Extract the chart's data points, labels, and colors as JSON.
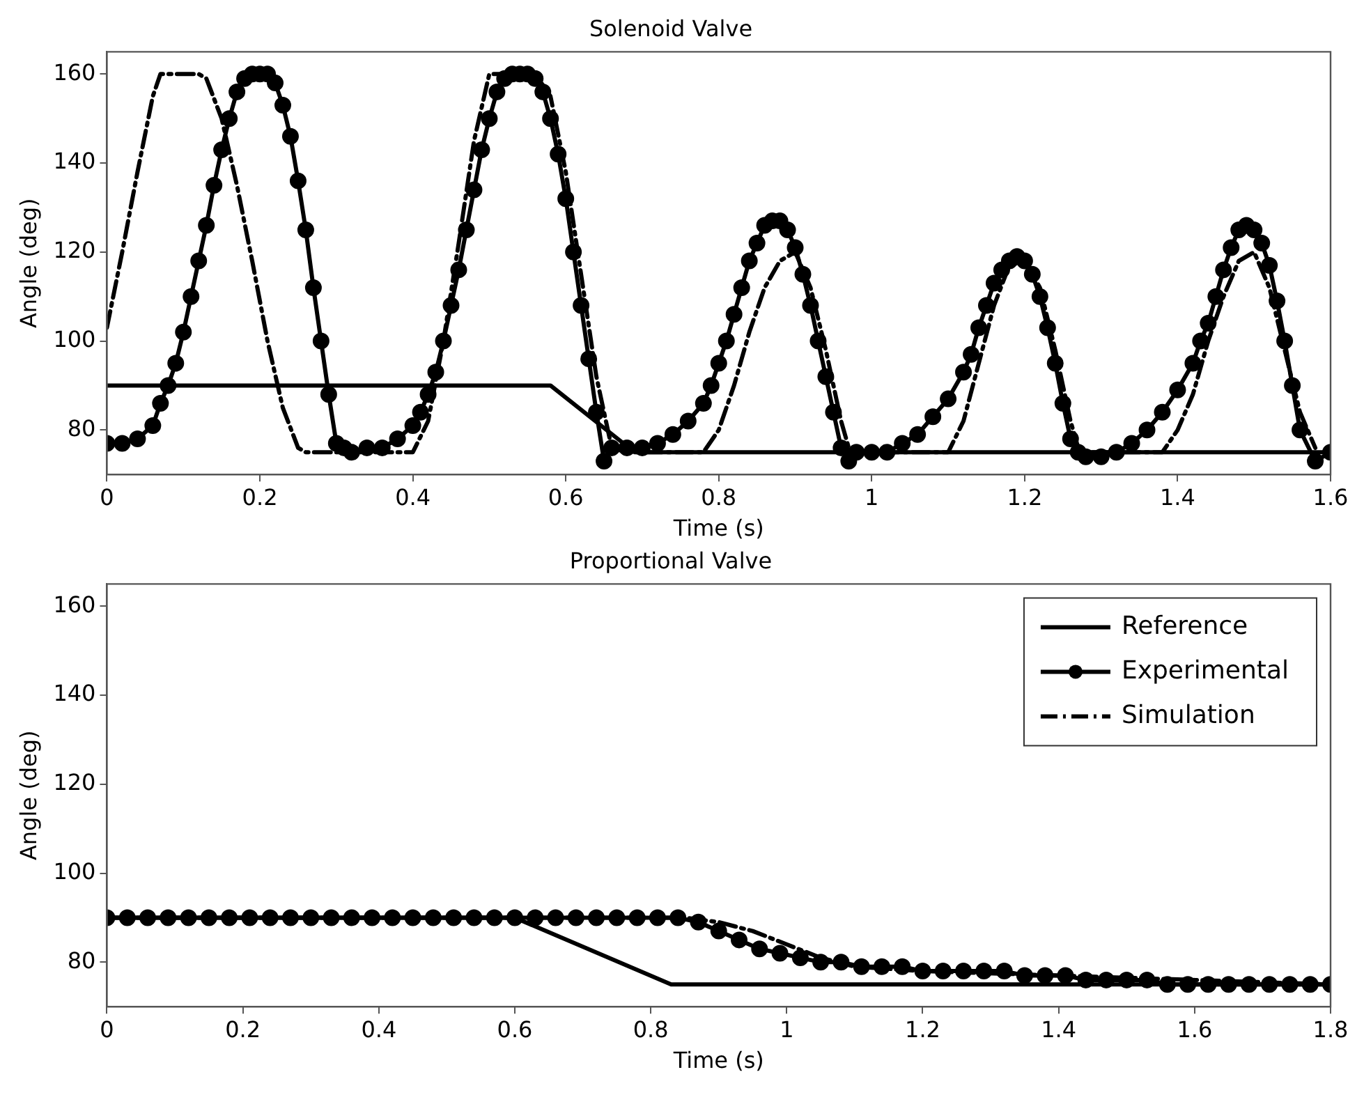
{
  "chart_data": [
    {
      "type": "line",
      "title": "Solenoid Valve",
      "xlabel": "Time (s)",
      "ylabel": "Angle (deg)",
      "xlim": [
        0,
        1.6
      ],
      "xticks": [
        0,
        0.2,
        0.4,
        0.6,
        0.8,
        1,
        1.2,
        1.4,
        1.6
      ],
      "ylim": [
        70,
        165
      ],
      "yticks": [
        80,
        100,
        120,
        140,
        160
      ],
      "grid": false,
      "legend": false,
      "series": [
        {
          "color": "#000000",
          "line_style": "solid",
          "x": [
            0,
            0.58,
            0.69,
            1.6
          ],
          "values": [
            90,
            90,
            75,
            75
          ]
        },
        {
          "color": "#000000",
          "line_style": "solid",
          "marker": "circle",
          "x": [
            0,
            0.02,
            0.04,
            0.06,
            0.07,
            0.08,
            0.09,
            0.1,
            0.11,
            0.12,
            0.13,
            0.14,
            0.15,
            0.16,
            0.17,
            0.18,
            0.19,
            0.2,
            0.21,
            0.22,
            0.23,
            0.24,
            0.25,
            0.26,
            0.27,
            0.28,
            0.29,
            0.3,
            0.31,
            0.32,
            0.34,
            0.36,
            0.38,
            0.4,
            0.41,
            0.42,
            0.43,
            0.44,
            0.45,
            0.46,
            0.47,
            0.48,
            0.49,
            0.5,
            0.51,
            0.52,
            0.53,
            0.54,
            0.55,
            0.56,
            0.57,
            0.58,
            0.59,
            0.6,
            0.61,
            0.62,
            0.63,
            0.64,
            0.65,
            0.66,
            0.68,
            0.7,
            0.72,
            0.74,
            0.76,
            0.78,
            0.79,
            0.8,
            0.81,
            0.82,
            0.83,
            0.84,
            0.85,
            0.86,
            0.87,
            0.88,
            0.89,
            0.9,
            0.91,
            0.92,
            0.93,
            0.94,
            0.95,
            0.96,
            0.97,
            0.98,
            1,
            1.02,
            1.04,
            1.06,
            1.08,
            1.1,
            1.12,
            1.13,
            1.14,
            1.15,
            1.16,
            1.17,
            1.18,
            1.19,
            1.2,
            1.21,
            1.22,
            1.23,
            1.24,
            1.25,
            1.26,
            1.27,
            1.28,
            1.3,
            1.32,
            1.34,
            1.36,
            1.38,
            1.4,
            1.42,
            1.43,
            1.44,
            1.45,
            1.46,
            1.47,
            1.48,
            1.49,
            1.5,
            1.51,
            1.52,
            1.53,
            1.54,
            1.55,
            1.56,
            1.58,
            1.6
          ],
          "values": [
            77,
            77,
            78,
            81,
            86,
            90,
            95,
            102,
            110,
            118,
            126,
            135,
            143,
            150,
            156,
            159,
            160,
            160,
            160,
            158,
            153,
            146,
            136,
            125,
            112,
            100,
            88,
            77,
            76,
            75,
            76,
            76,
            78,
            81,
            84,
            88,
            93,
            100,
            108,
            116,
            125,
            134,
            143,
            150,
            156,
            159,
            160,
            160,
            160,
            159,
            156,
            150,
            142,
            132,
            120,
            108,
            96,
            84,
            73,
            76,
            76,
            76,
            77,
            79,
            82,
            86,
            90,
            95,
            100,
            106,
            112,
            118,
            122,
            126,
            127,
            127,
            125,
            121,
            115,
            108,
            100,
            92,
            84,
            76,
            73,
            75,
            75,
            75,
            77,
            79,
            83,
            87,
            93,
            97,
            103,
            108,
            113,
            116,
            118,
            119,
            118,
            115,
            110,
            103,
            95,
            86,
            78,
            75,
            74,
            74,
            75,
            77,
            80,
            84,
            89,
            95,
            100,
            104,
            110,
            116,
            121,
            125,
            126,
            125,
            122,
            117,
            109,
            100,
            90,
            80,
            73,
            75
          ]
        },
        {
          "color": "#000000",
          "line_style": "dashed",
          "x": [
            0,
            0.02,
            0.04,
            0.06,
            0.07,
            0.1,
            0.12,
            0.13,
            0.15,
            0.17,
            0.19,
            0.21,
            0.23,
            0.25,
            0.26,
            0.4,
            0.42,
            0.44,
            0.46,
            0.48,
            0.5,
            0.56,
            0.58,
            0.6,
            0.62,
            0.64,
            0.66,
            0.68,
            0.78,
            0.8,
            0.82,
            0.84,
            0.86,
            0.88,
            0.9,
            0.92,
            0.94,
            0.96,
            0.97,
            0.98,
            1.1,
            1.12,
            1.14,
            1.16,
            1.18,
            1.2,
            1.22,
            1.24,
            1.26,
            1.27,
            1.28,
            1.38,
            1.4,
            1.42,
            1.44,
            1.46,
            1.48,
            1.5,
            1.52,
            1.54,
            1.56,
            1.58
          ],
          "values": [
            103,
            120,
            138,
            155,
            160,
            160,
            160,
            159,
            150,
            135,
            118,
            100,
            85,
            76,
            75,
            75,
            82,
            100,
            122,
            145,
            160,
            160,
            155,
            138,
            115,
            92,
            76,
            75,
            75,
            80,
            90,
            102,
            112,
            118,
            120,
            112,
            98,
            82,
            76,
            75,
            75,
            82,
            95,
            108,
            117,
            118,
            112,
            98,
            82,
            76,
            75,
            75,
            80,
            88,
            100,
            110,
            118,
            120,
            112,
            98,
            84,
            76
          ]
        }
      ]
    },
    {
      "type": "line",
      "title": "Proportional Valve",
      "xlabel": "Time (s)",
      "ylabel": "Angle (deg)",
      "xlim": [
        0,
        1.8
      ],
      "xticks": [
        0,
        0.2,
        0.4,
        0.6,
        0.8,
        1,
        1.2,
        1.4,
        1.6,
        1.8
      ],
      "ylim": [
        70,
        165
      ],
      "yticks": [
        80,
        100,
        120,
        140,
        160
      ],
      "grid": false,
      "legend": "top right",
      "series": [
        {
          "name": "Reference",
          "color": "#000000",
          "line_style": "solid",
          "x": [
            0,
            0.6,
            0.83,
            1.8
          ],
          "values": [
            90,
            90,
            75,
            75
          ]
        },
        {
          "name": "Experimental",
          "color": "#000000",
          "line_style": "solid",
          "marker": "circle",
          "x": [
            0,
            0.03,
            0.06,
            0.09,
            0.12,
            0.15,
            0.18,
            0.21,
            0.24,
            0.27,
            0.3,
            0.33,
            0.36,
            0.39,
            0.42,
            0.45,
            0.48,
            0.51,
            0.54,
            0.57,
            0.6,
            0.63,
            0.66,
            0.69,
            0.72,
            0.75,
            0.78,
            0.81,
            0.84,
            0.87,
            0.9,
            0.93,
            0.96,
            0.99,
            1.02,
            1.05,
            1.08,
            1.11,
            1.14,
            1.17,
            1.2,
            1.23,
            1.26,
            1.29,
            1.32,
            1.35,
            1.38,
            1.41,
            1.44,
            1.47,
            1.5,
            1.53,
            1.56,
            1.59,
            1.62,
            1.65,
            1.68,
            1.71,
            1.74,
            1.77,
            1.8
          ],
          "values": [
            90,
            90,
            90,
            90,
            90,
            90,
            90,
            90,
            90,
            90,
            90,
            90,
            90,
            90,
            90,
            90,
            90,
            90,
            90,
            90,
            90,
            90,
            90,
            90,
            90,
            90,
            90,
            90,
            90,
            89,
            87,
            85,
            83,
            82,
            81,
            80,
            80,
            79,
            79,
            79,
            78,
            78,
            78,
            78,
            78,
            77,
            77,
            77,
            76,
            76,
            76,
            76,
            75,
            75,
            75,
            75,
            75,
            75,
            75,
            75,
            75
          ]
        },
        {
          "name": "Simulation",
          "color": "#000000",
          "line_style": "dashed",
          "x": [
            0,
            0.85,
            0.9,
            0.95,
            1,
            1.05,
            1.1,
            1.2,
            1.4,
            1.6,
            1.8
          ],
          "values": [
            90,
            90,
            89,
            87,
            84,
            81,
            79,
            78,
            77,
            76,
            75
          ]
        }
      ]
    }
  ]
}
